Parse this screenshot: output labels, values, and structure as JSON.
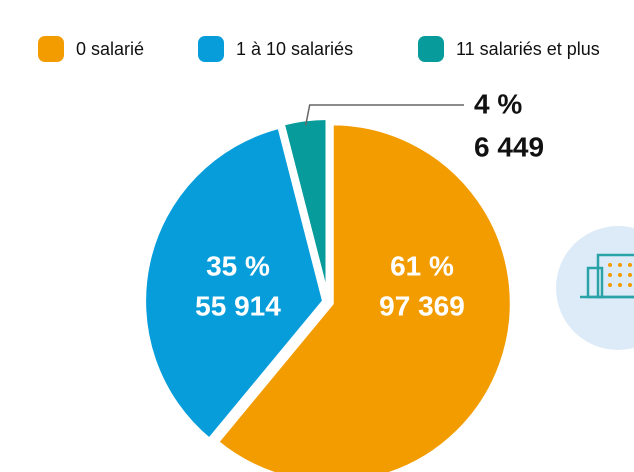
{
  "chart_data": {
    "type": "pie",
    "categories": [
      "0 salarié",
      "1 à 10 salariés",
      "11 salariés et plus"
    ],
    "values": [
      61,
      35,
      4
    ],
    "value_labels": [
      "61 %",
      "35 %",
      "4 %"
    ],
    "counts": [
      97369,
      55914,
      6449
    ],
    "count_labels": [
      "97 369",
      "55 914",
      "6 449"
    ],
    "colors": [
      "#f39c00",
      "#079ddb",
      "#079b9b"
    ],
    "legend": "top"
  }
}
